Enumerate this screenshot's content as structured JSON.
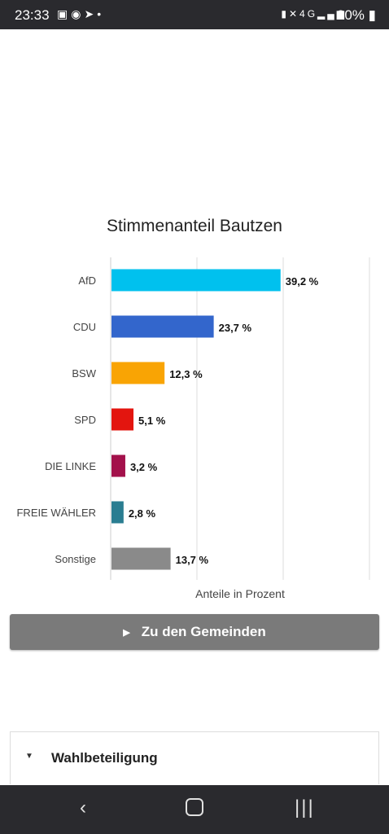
{
  "status_bar": {
    "time": "23:33",
    "left_icons": [
      "gallery-icon",
      "chrome-icon",
      "telegram-icon",
      "dot-icon"
    ],
    "right_icons": [
      "battery-saver-icon",
      "mute-icon",
      "4g-icon",
      "signal-icon"
    ],
    "battery": "20%"
  },
  "chart_data": {
    "type": "bar",
    "orientation": "horizontal",
    "title": "Stimmenanteil Bautzen",
    "xlabel": "Anteile in Prozent",
    "categories": [
      "AfD",
      "CDU",
      "BSW",
      "SPD",
      "DIE LINKE",
      "FREIE WÄHLER",
      "Sonstige"
    ],
    "values": [
      39.2,
      23.7,
      12.3,
      5.1,
      3.2,
      2.8,
      13.7
    ],
    "value_labels": [
      "39,2 %",
      "23,7 %",
      "12,3 %",
      "5,1 %",
      "3,2 %",
      "2,8 %",
      "13,7 %"
    ],
    "colors": [
      "#00c1ee",
      "#3366cc",
      "#f9a404",
      "#e3150f",
      "#a3114b",
      "#2a7d91",
      "#8a8a8a"
    ],
    "xlim": [
      0,
      60
    ],
    "grid": true
  },
  "actions": {
    "gemeinden_label": "Zu den Gemeinden"
  },
  "accordion": {
    "wahlbeteiligung_label": "Wahlbeteiligung"
  }
}
